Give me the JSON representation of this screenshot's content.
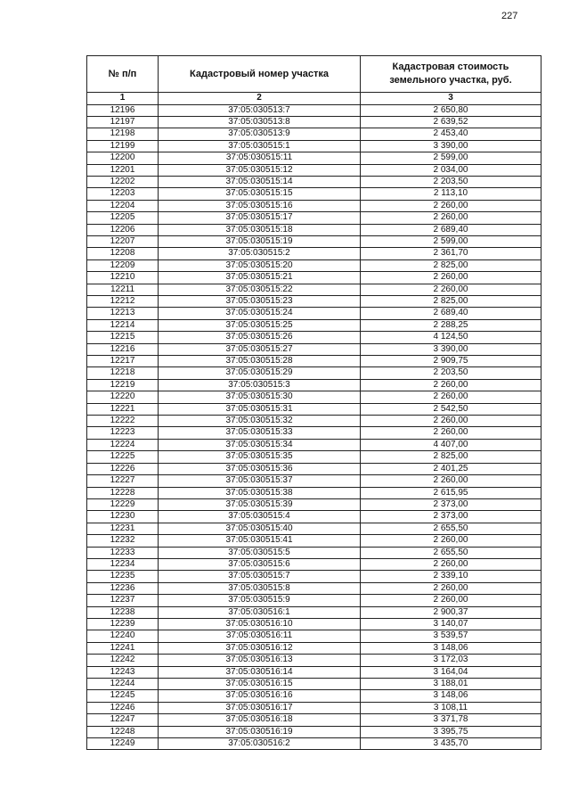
{
  "page_number": "227",
  "table": {
    "headers": [
      "№ п/п",
      "Кадастровый номер участка",
      "Кадастровая стоимость земельного участка, руб."
    ],
    "column_numbers": [
      "1",
      "2",
      "3"
    ],
    "rows": [
      [
        "12196",
        "37:05:030513:7",
        "2 650,80"
      ],
      [
        "12197",
        "37:05:030513:8",
        "2 639,52"
      ],
      [
        "12198",
        "37:05:030513:9",
        "2 453,40"
      ],
      [
        "12199",
        "37:05:030515:1",
        "3 390,00"
      ],
      [
        "12200",
        "37:05:030515:11",
        "2 599,00"
      ],
      [
        "12201",
        "37:05:030515:12",
        "2 034,00"
      ],
      [
        "12202",
        "37:05:030515:14",
        "2 203,50"
      ],
      [
        "12203",
        "37:05:030515:15",
        "2 113,10"
      ],
      [
        "12204",
        "37:05:030515:16",
        "2 260,00"
      ],
      [
        "12205",
        "37:05:030515:17",
        "2 260,00"
      ],
      [
        "12206",
        "37:05:030515:18",
        "2 689,40"
      ],
      [
        "12207",
        "37:05:030515:19",
        "2 599,00"
      ],
      [
        "12208",
        "37:05:030515:2",
        "2 361,70"
      ],
      [
        "12209",
        "37:05:030515:20",
        "2 825,00"
      ],
      [
        "12210",
        "37:05:030515:21",
        "2 260,00"
      ],
      [
        "12211",
        "37:05:030515:22",
        "2 260,00"
      ],
      [
        "12212",
        "37:05:030515:23",
        "2 825,00"
      ],
      [
        "12213",
        "37:05:030515:24",
        "2 689,40"
      ],
      [
        "12214",
        "37:05:030515:25",
        "2 288,25"
      ],
      [
        "12215",
        "37:05:030515:26",
        "4 124,50"
      ],
      [
        "12216",
        "37:05:030515:27",
        "3 390,00"
      ],
      [
        "12217",
        "37:05:030515:28",
        "2 909,75"
      ],
      [
        "12218",
        "37:05:030515:29",
        "2 203,50"
      ],
      [
        "12219",
        "37:05:030515:3",
        "2 260,00"
      ],
      [
        "12220",
        "37:05:030515:30",
        "2 260,00"
      ],
      [
        "12221",
        "37:05:030515:31",
        "2 542,50"
      ],
      [
        "12222",
        "37:05:030515:32",
        "2 260,00"
      ],
      [
        "12223",
        "37:05:030515:33",
        "2 260,00"
      ],
      [
        "12224",
        "37:05:030515:34",
        "4 407,00"
      ],
      [
        "12225",
        "37:05:030515:35",
        "2 825,00"
      ],
      [
        "12226",
        "37:05:030515:36",
        "2 401,25"
      ],
      [
        "12227",
        "37:05:030515:37",
        "2 260,00"
      ],
      [
        "12228",
        "37:05:030515:38",
        "2 615,95"
      ],
      [
        "12229",
        "37:05:030515:39",
        "2 373,00"
      ],
      [
        "12230",
        "37:05:030515:4",
        "2 373,00"
      ],
      [
        "12231",
        "37:05:030515:40",
        "2 655,50"
      ],
      [
        "12232",
        "37:05:030515:41",
        "2 260,00"
      ],
      [
        "12233",
        "37:05:030515:5",
        "2 655,50"
      ],
      [
        "12234",
        "37:05:030515:6",
        "2 260,00"
      ],
      [
        "12235",
        "37:05:030515:7",
        "2 339,10"
      ],
      [
        "12236",
        "37:05:030515:8",
        "2 260,00"
      ],
      [
        "12237",
        "37:05:030515:9",
        "2 260,00"
      ],
      [
        "12238",
        "37:05:030516:1",
        "2 900,37"
      ],
      [
        "12239",
        "37:05:030516:10",
        "3 140,07"
      ],
      [
        "12240",
        "37:05:030516:11",
        "3 539,57"
      ],
      [
        "12241",
        "37:05:030516:12",
        "3 148,06"
      ],
      [
        "12242",
        "37:05:030516:13",
        "3 172,03"
      ],
      [
        "12243",
        "37:05:030516:14",
        "3 164,04"
      ],
      [
        "12244",
        "37:05:030516:15",
        "3 188,01"
      ],
      [
        "12245",
        "37:05:030516:16",
        "3 148,06"
      ],
      [
        "12246",
        "37:05:030516:17",
        "3 108,11"
      ],
      [
        "12247",
        "37:05:030516:18",
        "3 371,78"
      ],
      [
        "12248",
        "37:05:030516:19",
        "3 395,75"
      ],
      [
        "12249",
        "37:05:030516:2",
        "3 435,70"
      ]
    ]
  }
}
